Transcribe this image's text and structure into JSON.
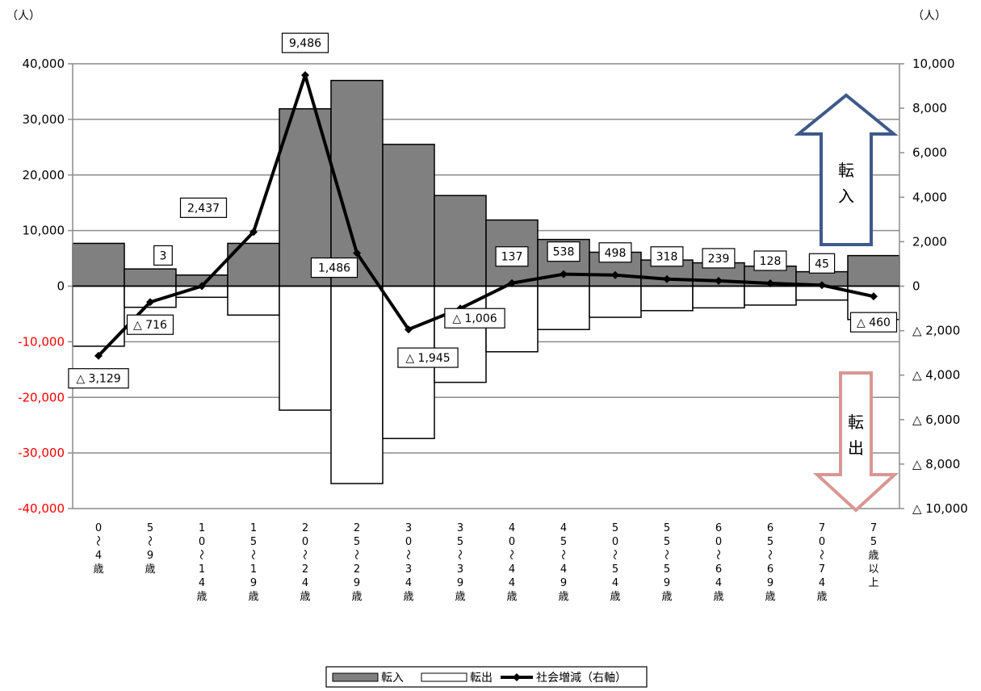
{
  "chart_data": {
    "type": "bar",
    "categories": [
      "0〜4歳",
      "5〜9歳",
      "10〜14歳",
      "15〜19歳",
      "20〜24歳",
      "25〜29歳",
      "30〜34歳",
      "35〜39歳",
      "40〜44歳",
      "45〜49歳",
      "50〜54歳",
      "55〜59歳",
      "60〜64歳",
      "65〜69歳",
      "70〜74歳",
      "75歳以上"
    ],
    "category_labels": [
      [
        "0",
        "〜",
        "4",
        "歳"
      ],
      [
        "5",
        "〜",
        "9",
        "歳"
      ],
      [
        "1",
        "0",
        "〜",
        "1",
        "4",
        "歳"
      ],
      [
        "1",
        "5",
        "〜",
        "1",
        "9",
        "歳"
      ],
      [
        "2",
        "0",
        "〜",
        "2",
        "4",
        "歳"
      ],
      [
        "2",
        "5",
        "〜",
        "2",
        "9",
        "歳"
      ],
      [
        "3",
        "0",
        "〜",
        "3",
        "4",
        "歳"
      ],
      [
        "3",
        "5",
        "〜",
        "3",
        "9",
        "歳"
      ],
      [
        "4",
        "0",
        "〜",
        "4",
        "4",
        "歳"
      ],
      [
        "4",
        "5",
        "〜",
        "4",
        "9",
        "歳"
      ],
      [
        "5",
        "0",
        "〜",
        "5",
        "4",
        "歳"
      ],
      [
        "5",
        "5",
        "〜",
        "5",
        "9",
        "歳"
      ],
      [
        "6",
        "0",
        "〜",
        "6",
        "4",
        "歳"
      ],
      [
        "6",
        "5",
        "〜",
        "6",
        "9",
        "歳"
      ],
      [
        "7",
        "0",
        "〜",
        "7",
        "4",
        "歳"
      ],
      [
        "7",
        "5",
        "歳",
        "以",
        "上"
      ]
    ],
    "series": [
      {
        "name": "転入",
        "axis": "left",
        "color": "#808080",
        "values": [
          7700,
          3100,
          2000,
          7700,
          31900,
          37000,
          25500,
          16300,
          11900,
          8400,
          6100,
          4700,
          4200,
          3600,
          2600,
          5500
        ]
      },
      {
        "name": "転出",
        "axis": "left",
        "color": "#ffffff",
        "values": [
          -10800,
          -3800,
          -2000,
          -5200,
          -22300,
          -35500,
          -27400,
          -17300,
          -11800,
          -7800,
          -5600,
          -4400,
          -3900,
          -3400,
          -2500,
          -6000
        ]
      },
      {
        "name": "社会増減（右軸）",
        "axis": "right",
        "color": "#000000",
        "values": [
          -3129,
          -716,
          3,
          2437,
          9486,
          1486,
          -1945,
          -1006,
          137,
          538,
          498,
          318,
          239,
          128,
          45,
          -460
        ]
      }
    ],
    "point_labels": [
      "△ 3,129",
      "△ 716",
      "3",
      "2,437",
      "9,486",
      "1,486",
      "△ 1,945",
      "△ 1,006",
      "137",
      "538",
      "498",
      "318",
      "239",
      "128",
      "45",
      "△ 460"
    ],
    "left_axis": {
      "unit": "（人）",
      "ylim": [
        -40000,
        40000
      ],
      "ticks": [
        40000,
        30000,
        20000,
        10000,
        0,
        -10000,
        -20000,
        -30000,
        -40000
      ],
      "tick_labels": [
        "40,000",
        "30,000",
        "20,000",
        "10,000",
        "0",
        "-10,000",
        "-20,000",
        "-30,000",
        "-40,000"
      ]
    },
    "right_axis": {
      "unit": "（人）",
      "ylim": [
        -10000,
        10000
      ],
      "ticks": [
        10000,
        8000,
        6000,
        4000,
        2000,
        0,
        -2000,
        -4000,
        -6000,
        -8000,
        -10000
      ],
      "tick_labels": [
        "10,000",
        "8,000",
        "6,000",
        "4,000",
        "2,000",
        "0",
        "△ 2,000",
        "△ 4,000",
        "△ 6,000",
        "△ 8,000",
        "△ 10,000"
      ]
    },
    "annotations": {
      "inflow_arrow_text": "転入",
      "outflow_arrow_text": "転出",
      "inflow_arrow_color": "#3d5a8a",
      "outflow_arrow_color": "#d99694"
    },
    "grid": true,
    "negative_tick_color": "#ff0000",
    "legend_position": "bottom-center"
  }
}
